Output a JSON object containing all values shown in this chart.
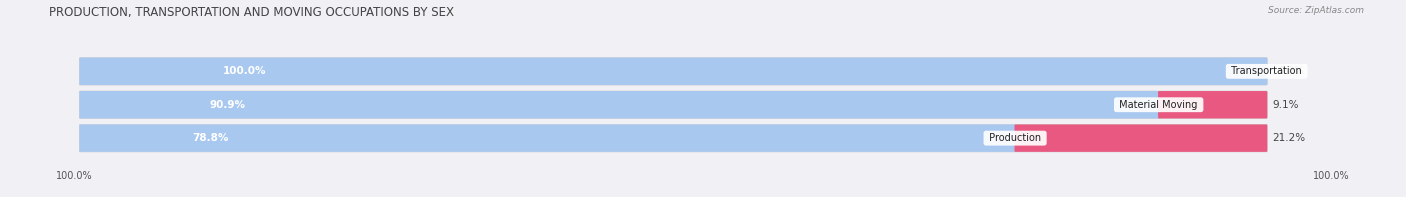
{
  "title": "PRODUCTION, TRANSPORTATION AND MOVING OCCUPATIONS BY SEX",
  "source": "Source: ZipAtlas.com",
  "categories": [
    "Transportation",
    "Material Moving",
    "Production"
  ],
  "male_values": [
    100.0,
    90.9,
    78.8
  ],
  "female_values": [
    0.0,
    9.1,
    21.2
  ],
  "male_color": "#a8c8f0",
  "female_color": "#f08080",
  "female_color_deep": "#e85880",
  "bar_bg_color": "#e0e0e8",
  "background_color": "#f0f0f5",
  "title_fontsize": 8.5,
  "source_fontsize": 6.5,
  "label_fontsize": 7.5,
  "cat_fontsize": 7.0,
  "tick_fontsize": 7.0,
  "left_label": "100.0%",
  "right_label": "100.0%"
}
